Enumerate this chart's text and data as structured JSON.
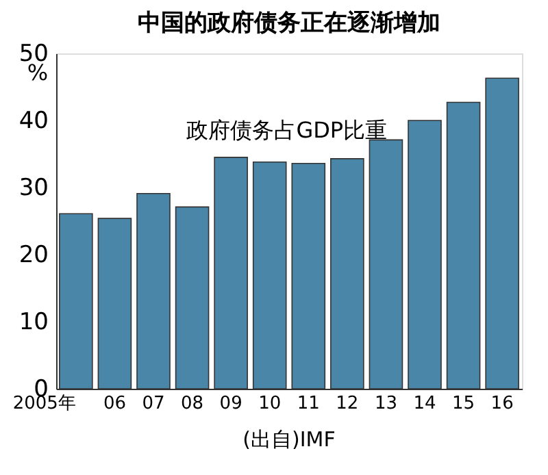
{
  "chart_data": {
    "type": "bar",
    "title": "中国的政府债务正在逐渐增加",
    "ylabel": "%",
    "categories": [
      "2005年",
      "06",
      "07",
      "08",
      "09",
      "10",
      "11",
      "12",
      "13",
      "14",
      "15",
      "16"
    ],
    "series": [
      {
        "name": "政府债务占GDP比重",
        "color": "#4a86a8",
        "values": [
          26.1,
          25.4,
          29.1,
          27.1,
          34.5,
          33.8,
          33.6,
          34.3,
          37.1,
          40.0,
          42.7,
          46.3
        ]
      }
    ],
    "annotations": [
      "(出自)IMF"
    ],
    "ylim": [
      0,
      50
    ],
    "yticks": [
      0,
      10,
      20,
      30,
      40,
      50
    ],
    "grid": false,
    "legend": false
  }
}
